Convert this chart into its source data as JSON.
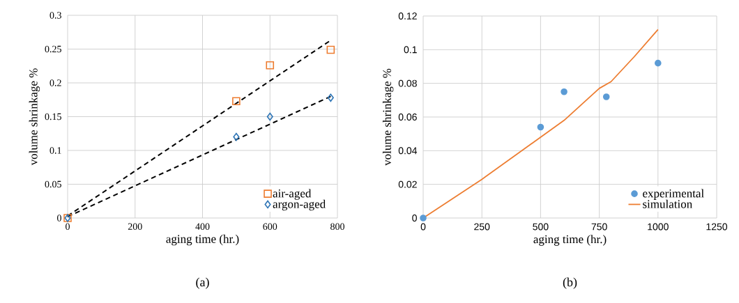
{
  "chart_data": [
    {
      "type": "scatter",
      "xlabel": "aging time (hr.)",
      "ylabel": "volume shrinkage %",
      "xlim": [
        0,
        800
      ],
      "ylim": [
        0,
        0.3
      ],
      "xticks": [
        0,
        200,
        400,
        600,
        800
      ],
      "yticks": [
        0,
        0.05,
        0.1,
        0.15,
        0.2,
        0.25,
        0.3
      ],
      "grid": true,
      "legend": "bottom right",
      "annotations": [
        "(a)"
      ],
      "series": [
        {
          "type": "line",
          "line_style": "dashed",
          "marker": "none",
          "color": "#000000",
          "x": [
            0,
            780
          ],
          "values": [
            0.003,
            0.263
          ]
        },
        {
          "type": "line",
          "line_style": "dashed",
          "marker": "none",
          "color": "#000000",
          "x": [
            0,
            780
          ],
          "values": [
            0.002,
            0.18
          ]
        },
        {
          "name": "air-aged",
          "type": "scatter",
          "marker": "square",
          "color": "#ed7d31",
          "x": [
            0,
            500,
            600,
            780
          ],
          "values": [
            0,
            0.173,
            0.226,
            0.249
          ]
        },
        {
          "name": "argon-aged",
          "type": "scatter",
          "marker": "diamond",
          "color": "#2e75b6",
          "x": [
            0,
            500,
            600,
            780
          ],
          "values": [
            0,
            0.12,
            0.15,
            0.178
          ]
        }
      ]
    },
    {
      "type": "scatter",
      "xlabel": "aging time (hr.)",
      "ylabel": "volume shrinkage %",
      "xlim": [
        0,
        1250
      ],
      "ylim": [
        0,
        0.12
      ],
      "xticks": [
        0,
        250,
        500,
        750,
        1000,
        1250
      ],
      "yticks": [
        0,
        0.02,
        0.04,
        0.06,
        0.08,
        0.1,
        0.12
      ],
      "grid": true,
      "legend": "bottom right",
      "annotations": [
        "(b)"
      ],
      "series": [
        {
          "name": "experimental",
          "type": "scatter",
          "marker": "circle",
          "color": "#5b9bd5",
          "x": [
            0,
            500,
            600,
            780,
            1000
          ],
          "values": [
            0,
            0.054,
            0.075,
            0.072,
            0.092
          ]
        },
        {
          "name": "simulation",
          "type": "line",
          "line_style": "solid",
          "marker": "none",
          "color": "#ed7d31",
          "x": [
            0,
            250,
            500,
            600,
            750,
            800,
            900,
            1000
          ],
          "values": [
            0,
            0.023,
            0.048,
            0.058,
            0.077,
            0.081,
            0.096,
            0.112
          ]
        }
      ]
    }
  ]
}
